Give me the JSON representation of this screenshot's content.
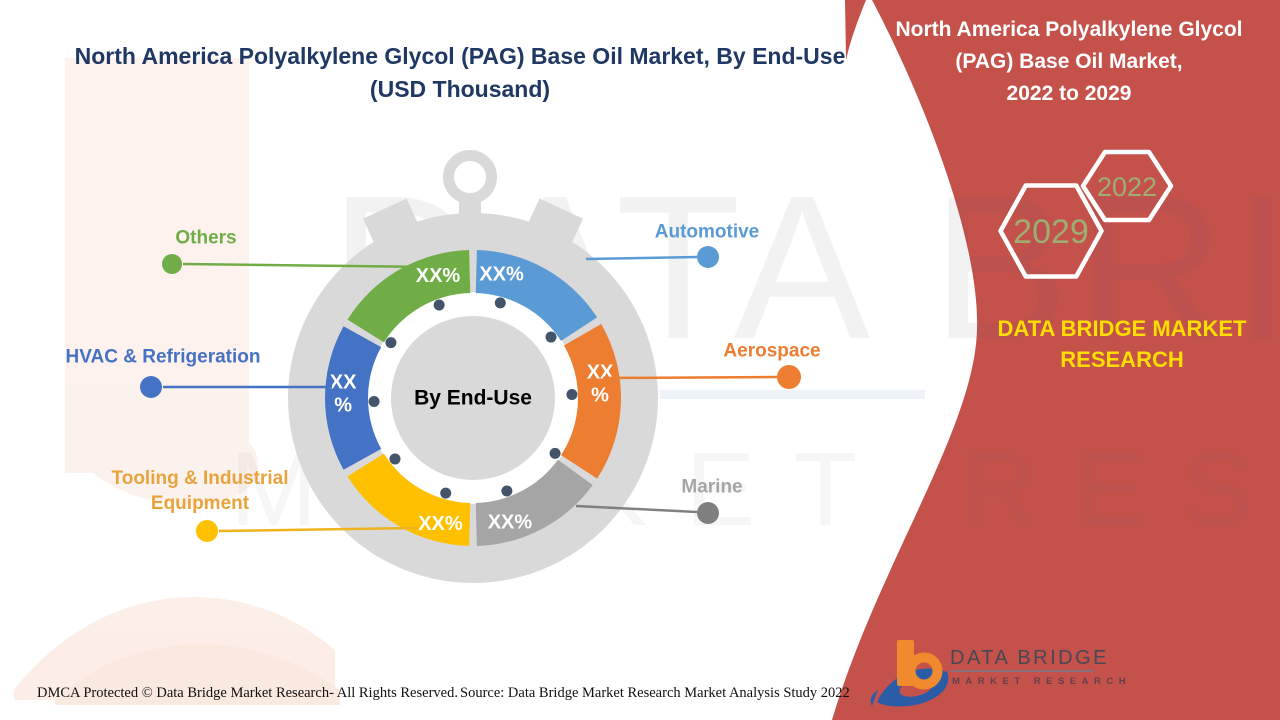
{
  "title": {
    "line1": "North America Polyalkylene Glycol (PAG) Base Oil Market, By End-Use",
    "line2": "(USD Thousand)",
    "color": "#1F3864"
  },
  "watermark": {
    "line1": "DATA BRIDGE",
    "line2": "MARKET RESEARCH"
  },
  "chart_data": {
    "type": "pie",
    "subtype": "donut-stopwatch",
    "center_label": "By End-Use",
    "unit": "USD Thousand",
    "note": "Percentage values are masked as XX% in the source image",
    "segments": [
      {
        "id": "automotive",
        "label": "Automotive",
        "value_label": "XX%",
        "color": "#5B9BD5",
        "start_deg": 1.5,
        "end_deg": 57,
        "label_deg": 13,
        "label_r": 127,
        "two_line": false
      },
      {
        "id": "aerospace",
        "label": "Aerospace",
        "value_label": "XX%",
        "color": "#ED7D31",
        "start_deg": 60,
        "end_deg": 123,
        "label_deg": 83,
        "label_r": 128,
        "two_line": true
      },
      {
        "id": "marine",
        "label": "Marine",
        "value_label": "XX%",
        "color": "#A5A5A5",
        "start_deg": 126,
        "end_deg": 178.5,
        "label_deg": 163.5,
        "label_r": 130,
        "two_line": false
      },
      {
        "id": "tooling",
        "label": "Tooling & Industrial Equipment",
        "value_label": "XX%",
        "color": "#FFC000",
        "start_deg": 181.5,
        "end_deg": 238,
        "label_deg": 194.5,
        "label_r": 130,
        "two_line": false
      },
      {
        "id": "hvac",
        "label": "HVAC & Refrigeration",
        "value_label": "XX%",
        "color": "#4472C4",
        "start_deg": 241,
        "end_deg": 299,
        "label_deg": 272.5,
        "label_r": 130,
        "two_line": true
      },
      {
        "id": "others",
        "label": "Others",
        "value_label": "XX%",
        "color": "#70AD47",
        "start_deg": 302,
        "end_deg": 358.5,
        "label_deg": 344,
        "label_r": 127,
        "two_line": false
      }
    ]
  },
  "legend": [
    {
      "id": "others",
      "text": "Others",
      "color": "#70AD47",
      "line_color": "#70AD47",
      "dot_color": "#70AD47"
    },
    {
      "id": "automotive",
      "text": "Automotive",
      "color": "#5B9BD5",
      "line_color": "#5B9BD5",
      "dot_color": "#5B9BD5"
    },
    {
      "id": "hvac",
      "text": "HVAC & Refrigeration",
      "color": "#4472C4",
      "line_color": "#4472C4",
      "dot_color": "#4472C4"
    },
    {
      "id": "aerospace",
      "text": "Aerospace",
      "color": "#ED7D31",
      "line_color": "#ED7D31",
      "dot_color": "#ED7D31"
    },
    {
      "id": "tooling",
      "text": "Tooling & Industrial\nEquipment",
      "color": "#E8A33D",
      "line_color": "#EDB41E",
      "dot_color": "#FFC000"
    },
    {
      "id": "marine",
      "text": "Marine",
      "color": "#A6A6A6",
      "line_color": "#808080",
      "dot_color": "#7F7F7F"
    }
  ],
  "side_panel": {
    "bg_color": "#C5514B",
    "title_lines": [
      "North America Polyalkylene Glycol",
      "(PAG) Base Oil Market,",
      "2022 to 2029"
    ],
    "hexagons": [
      {
        "year": "2029"
      },
      {
        "year": "2022"
      }
    ],
    "year_color": "#9DAE71",
    "brand_line1": "DATA BRIDGE MARKET",
    "brand_line2": "RESEARCH",
    "brand_color": "#FFDE00"
  },
  "footer": {
    "dmca": "DMCA Protected © Data Bridge Market Research- All Rights Reserved.",
    "source": "Source: Data Bridge Market Research Market Analysis Study 2022",
    "logo_title": "DATA BRIDGE",
    "logo_subtitle": "MARKET RESEARCH"
  }
}
